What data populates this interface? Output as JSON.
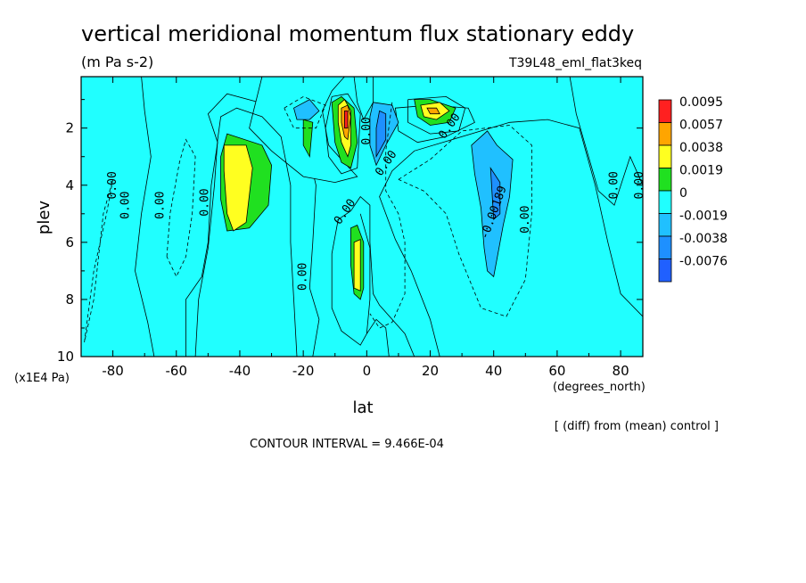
{
  "chart_data": {
    "type": "heatmap",
    "title": "vertical meridional momentum flux stationary eddy",
    "units": "(m Pa s-2)",
    "run_label": "T39L48_eml_flat3keq",
    "xlabel": "lat",
    "x_units": "(degrees_north)",
    "ylabel": "plev",
    "y_units": "(x1E4 Pa)",
    "xlim": [
      -90,
      87
    ],
    "ylim": [
      10,
      0.2
    ],
    "x_ticks": [
      -80,
      -60,
      -40,
      -20,
      0,
      20,
      40,
      60,
      80
    ],
    "y_ticks": [
      2,
      4,
      6,
      8,
      10
    ],
    "contour_interval_text": "CONTOUR INTERVAL = 9.466E-04",
    "footnote": "[ (diff) from (mean) control ]",
    "legend": {
      "placement": "right",
      "levels": [
        "0.0095",
        "0.0057",
        "0.0038",
        "0.0019",
        "0",
        "-0.0019",
        "-0.0038",
        "-0.0076"
      ],
      "colors": [
        "#ff2020",
        "#ffa500",
        "#ffff20",
        "#20e020",
        "#20ffff",
        "#20c0ff",
        "#1e90ff",
        "#2060ff"
      ]
    },
    "contour_labels": [
      {
        "text": "0.00",
        "lat": -79,
        "plev": 4.0,
        "rotate": -90
      },
      {
        "text": "0.00",
        "lat": -75,
        "plev": 4.7,
        "rotate": -90
      },
      {
        "text": "0.00",
        "lat": -64,
        "plev": 4.7,
        "rotate": -90
      },
      {
        "text": "0.00",
        "lat": -50,
        "plev": 4.6,
        "rotate": -90
      },
      {
        "text": "0.00",
        "lat": -19,
        "plev": 7.2,
        "rotate": -90
      },
      {
        "text": "0.00",
        "lat": -6,
        "plev": 5.0,
        "rotate": -55
      },
      {
        "text": "0.00",
        "lat": 1,
        "plev": 2.1,
        "rotate": -90
      },
      {
        "text": "0.00",
        "lat": 7,
        "plev": 3.3,
        "rotate": -55
      },
      {
        "text": "0.00",
        "lat": 27,
        "plev": 2.0,
        "rotate": -55
      },
      {
        "text": "-0.00189",
        "lat": 41,
        "plev": 5.0,
        "rotate": -70
      },
      {
        "text": "0.00",
        "lat": 51,
        "plev": 5.2,
        "rotate": -90
      },
      {
        "text": "0.00",
        "lat": 79,
        "plev": 4.0,
        "rotate": -90
      },
      {
        "text": "0.00",
        "lat": 87,
        "plev": 4.0,
        "rotate": -90
      }
    ],
    "filled_regions": [
      {
        "level": "0",
        "pts": [
          [
            -90,
            0.2
          ],
          [
            -71,
            0.2
          ],
          [
            -70,
            1.4
          ],
          [
            -68,
            3
          ],
          [
            -71,
            5
          ],
          [
            -73,
            7
          ],
          [
            -69,
            8.8
          ],
          [
            -67,
            10
          ],
          [
            -90,
            10
          ]
        ]
      },
      {
        "level": "0",
        "pts": [
          [
            -57,
            10
          ],
          [
            -57,
            8
          ],
          [
            -52,
            7.2
          ],
          [
            -50,
            6
          ],
          [
            -49,
            4
          ],
          [
            -47,
            2.5
          ],
          [
            -50,
            1.5
          ],
          [
            -44,
            0.8
          ],
          [
            -34,
            1.1
          ],
          [
            -20,
            2.1
          ],
          [
            -16,
            4
          ],
          [
            -17,
            6
          ],
          [
            -18,
            7.6
          ],
          [
            -15,
            8.7
          ],
          [
            -17,
            10
          ]
        ]
      },
      {
        "level": "0",
        "pts": [
          [
            -33,
            0.2
          ],
          [
            -7,
            0.2
          ],
          [
            -11,
            0.7
          ],
          [
            -14,
            1.4
          ],
          [
            -12,
            2.6
          ],
          [
            -8,
            3.1
          ],
          [
            -3,
            3.7
          ],
          [
            -10,
            3.9
          ],
          [
            -20,
            3.7
          ],
          [
            -30,
            2.8
          ],
          [
            -37,
            2
          ]
        ]
      },
      {
        "level": "0",
        "pts": [
          [
            -4,
            0.2
          ],
          [
            2,
            0.2
          ],
          [
            2,
            1.1
          ],
          [
            -1,
            1.7
          ],
          [
            -3,
            1.1
          ]
        ]
      },
      {
        "level": "0",
        "pts": [
          [
            9,
            1.3
          ],
          [
            20,
            1.2
          ],
          [
            32,
            1.3
          ],
          [
            34,
            1.8
          ],
          [
            25,
            2.3
          ],
          [
            16,
            2.5
          ],
          [
            10,
            2.1
          ]
        ]
      },
      {
        "level": "0",
        "pts": [
          [
            7,
            10
          ],
          [
            6,
            9
          ],
          [
            3,
            8.7
          ],
          [
            0,
            9.2
          ],
          [
            -2,
            9.6
          ],
          [
            -8,
            9.1
          ],
          [
            -11,
            8.3
          ],
          [
            -11,
            6.4
          ],
          [
            -9,
            5.2
          ],
          [
            -5,
            4.9
          ],
          [
            -2,
            4.4
          ],
          [
            1,
            4.7
          ],
          [
            1,
            6
          ],
          [
            2,
            7.8
          ],
          [
            4,
            8.2
          ],
          [
            12,
            9.2
          ],
          [
            15,
            10
          ]
        ]
      },
      {
        "level": "0",
        "pts": [
          [
            4,
            4.4
          ],
          [
            8,
            3.5
          ],
          [
            15,
            2.8
          ],
          [
            27,
            2.4
          ],
          [
            45,
            1.8
          ],
          [
            57,
            1.7
          ],
          [
            67,
            2
          ],
          [
            72,
            4
          ],
          [
            76,
            6
          ],
          [
            80,
            7.8
          ],
          [
            87,
            8.6
          ],
          [
            87,
            10
          ],
          [
            23,
            10
          ],
          [
            20,
            8.7
          ],
          [
            14,
            7
          ],
          [
            9,
            5.9
          ]
        ]
      },
      {
        "level": "0",
        "pts": [
          [
            64,
            0.2
          ],
          [
            87,
            0.2
          ],
          [
            87,
            4
          ],
          [
            83,
            3
          ],
          [
            78,
            4.7
          ],
          [
            73,
            4.2
          ],
          [
            66,
            1.5
          ]
        ]
      },
      {
        "level": "0.0019",
        "pts": [
          [
            -20,
            1.7
          ],
          [
            -17,
            1.8
          ],
          [
            -18,
            3
          ],
          [
            -20,
            2.6
          ]
        ]
      },
      {
        "level": "0.0019",
        "pts": [
          [
            -11,
            1.1
          ],
          [
            -8,
            0.9
          ],
          [
            -4,
            1.3
          ],
          [
            -3,
            2.5
          ],
          [
            -5,
            3.4
          ],
          [
            -8,
            3.2
          ],
          [
            -10,
            2.5
          ]
        ]
      },
      {
        "level": "0.0038",
        "pts": [
          [
            -9,
            1.2
          ],
          [
            -7,
            1.0
          ],
          [
            -5,
            1.4
          ],
          [
            -5,
            2.6
          ],
          [
            -6,
            3.0
          ],
          [
            -8,
            2.5
          ],
          [
            -9,
            1.8
          ]
        ]
      },
      {
        "level": "0.0057",
        "pts": [
          [
            -8,
            1.3
          ],
          [
            -6,
            1.2
          ],
          [
            -5,
            1.6
          ],
          [
            -6,
            2.4
          ],
          [
            -7,
            2.3
          ],
          [
            -8,
            1.8
          ]
        ]
      },
      {
        "level": "0.0095",
        "pts": [
          [
            -7,
            1.4
          ],
          [
            -6,
            1.4
          ],
          [
            -6,
            2.0
          ],
          [
            -7,
            2.0
          ]
        ]
      },
      {
        "level": "0.0019",
        "pts": [
          [
            -44,
            2.2
          ],
          [
            -33,
            2.6
          ],
          [
            -30,
            3.3
          ],
          [
            -31,
            4.7
          ],
          [
            -37,
            5.5
          ],
          [
            -44,
            5.6
          ],
          [
            -46,
            4.5
          ],
          [
            -46,
            3
          ]
        ]
      },
      {
        "level": "0.0038",
        "pts": [
          [
            -45,
            2.6
          ],
          [
            -38,
            2.6
          ],
          [
            -36,
            3.4
          ],
          [
            -38,
            5.3
          ],
          [
            -42,
            5.6
          ],
          [
            -44,
            5.0
          ],
          [
            -45,
            3.5
          ]
        ]
      },
      {
        "level": "0.0019",
        "pts": [
          [
            15,
            1.0
          ],
          [
            20,
            1.0
          ],
          [
            28,
            1.3
          ],
          [
            26,
            1.8
          ],
          [
            20,
            1.9
          ],
          [
            16,
            1.6
          ]
        ]
      },
      {
        "level": "0.0038",
        "pts": [
          [
            17,
            1.2
          ],
          [
            23,
            1.1
          ],
          [
            26,
            1.4
          ],
          [
            22,
            1.7
          ],
          [
            18,
            1.6
          ]
        ]
      },
      {
        "level": "0.0057",
        "pts": [
          [
            19,
            1.3
          ],
          [
            22,
            1.3
          ],
          [
            23,
            1.5
          ],
          [
            20,
            1.5
          ]
        ]
      },
      {
        "level": "0.0019",
        "pts": [
          [
            -5,
            5.5
          ],
          [
            -3,
            5.4
          ],
          [
            -1,
            6
          ],
          [
            -1,
            7.6
          ],
          [
            -2,
            8.0
          ],
          [
            -4,
            7.8
          ],
          [
            -5,
            6.8
          ]
        ]
      },
      {
        "level": "0.0038",
        "pts": [
          [
            -4,
            6.0
          ],
          [
            -2,
            5.9
          ],
          [
            -2,
            7.7
          ],
          [
            -4,
            7.6
          ]
        ]
      },
      {
        "level": "-0.0019",
        "pts": [
          [
            -23,
            1.3
          ],
          [
            -18,
            1.0
          ],
          [
            -15,
            1.4
          ],
          [
            -18,
            1.7
          ],
          [
            -22,
            1.7
          ]
        ]
      },
      {
        "level": "-0.0019",
        "pts": [
          [
            2,
            1.1
          ],
          [
            8,
            1.2
          ],
          [
            10,
            1.8
          ],
          [
            6,
            2.6
          ],
          [
            3,
            3.3
          ],
          [
            1,
            2.6
          ],
          [
            1,
            1.6
          ]
        ]
      },
      {
        "level": "-0.0038",
        "pts": [
          [
            4,
            1.4
          ],
          [
            6,
            1.5
          ],
          [
            6,
            2.4
          ],
          [
            3,
            3.0
          ],
          [
            3,
            2
          ]
        ]
      },
      {
        "level": "-0.0019",
        "pts": [
          [
            33,
            2.6
          ],
          [
            38,
            2.1
          ],
          [
            41,
            2.6
          ],
          [
            46,
            3.1
          ],
          [
            45,
            4.4
          ],
          [
            43,
            5.4
          ],
          [
            40,
            7.2
          ],
          [
            38,
            7.0
          ],
          [
            37,
            6.2
          ],
          [
            36,
            4.8
          ],
          [
            34,
            3.6
          ]
        ]
      },
      {
        "level": "-0.0038",
        "pts": [
          [
            39,
            3.4
          ],
          [
            42,
            3.9
          ],
          [
            42,
            5
          ],
          [
            40,
            5.2
          ]
        ]
      }
    ],
    "contour_lines": [
      {
        "dash": false,
        "pts": [
          [
            -54,
            10
          ],
          [
            -53,
            8
          ],
          [
            -50,
            6.2
          ],
          [
            -48,
            4
          ],
          [
            -47,
            2.4
          ],
          [
            -46,
            1.6
          ],
          [
            -41,
            1.3
          ],
          [
            -33,
            1.6
          ],
          [
            -27,
            2.3
          ],
          [
            -24,
            4
          ],
          [
            -24,
            6
          ],
          [
            -23,
            8
          ],
          [
            -22,
            10
          ]
        ]
      },
      {
        "dash": true,
        "pts": [
          [
            -63,
            6.5
          ],
          [
            -62,
            5
          ],
          [
            -59,
            3.2
          ],
          [
            -57,
            2.4
          ],
          [
            -54,
            3
          ],
          [
            -55,
            5
          ],
          [
            -57,
            6.5
          ],
          [
            -60,
            7.2
          ],
          [
            -63,
            6.5
          ]
        ]
      },
      {
        "dash": true,
        "pts": [
          [
            -89,
            9.5
          ],
          [
            -86,
            7
          ],
          [
            -82,
            5
          ],
          [
            -80,
            3.8
          ],
          [
            -83,
            5
          ],
          [
            -86,
            8
          ],
          [
            -89,
            9.5
          ]
        ]
      },
      {
        "dash": true,
        "pts": [
          [
            8,
            1.1
          ],
          [
            6,
            2.8
          ],
          [
            6,
            4.2
          ],
          [
            10,
            5
          ],
          [
            12,
            6
          ],
          [
            12,
            7.8
          ],
          [
            8,
            8.8
          ],
          [
            4,
            9.0
          ],
          [
            1,
            8.5
          ]
        ]
      },
      {
        "dash": true,
        "pts": [
          [
            10,
            3.8
          ],
          [
            20,
            3.1
          ],
          [
            30,
            2.1
          ],
          [
            45,
            1.9
          ],
          [
            52,
            2.6
          ],
          [
            52,
            5
          ],
          [
            50,
            7.3
          ],
          [
            44,
            8.6
          ],
          [
            36,
            8.3
          ],
          [
            29,
            6.4
          ],
          [
            25,
            5
          ],
          [
            18,
            4.2
          ],
          [
            10,
            3.8
          ]
        ]
      },
      {
        "dash": false,
        "pts": [
          [
            -11,
            0.9
          ],
          [
            -6,
            0.8
          ],
          [
            -2,
            1.5
          ],
          [
            -3,
            3.4
          ],
          [
            -8,
            3.6
          ],
          [
            -12,
            3
          ],
          [
            -13,
            2
          ],
          [
            -11,
            0.9
          ]
        ]
      },
      {
        "dash": false,
        "pts": [
          [
            13,
            1.0
          ],
          [
            25,
            0.9
          ],
          [
            31,
            1.3
          ],
          [
            29,
            2.1
          ],
          [
            20,
            2.2
          ],
          [
            13,
            1.8
          ],
          [
            13,
            1.0
          ]
        ]
      },
      {
        "dash": true,
        "pts": [
          [
            -26,
            1.3
          ],
          [
            -20,
            0.9
          ],
          [
            -13,
            1.2
          ],
          [
            -16,
            2.0
          ],
          [
            -23,
            2.0
          ],
          [
            -26,
            1.3
          ]
        ]
      },
      {
        "dash": false,
        "pts": [
          [
            -2,
            5
          ],
          [
            1,
            6.2
          ],
          [
            1,
            8.0
          ],
          [
            0,
            9.2
          ]
        ]
      }
    ]
  }
}
